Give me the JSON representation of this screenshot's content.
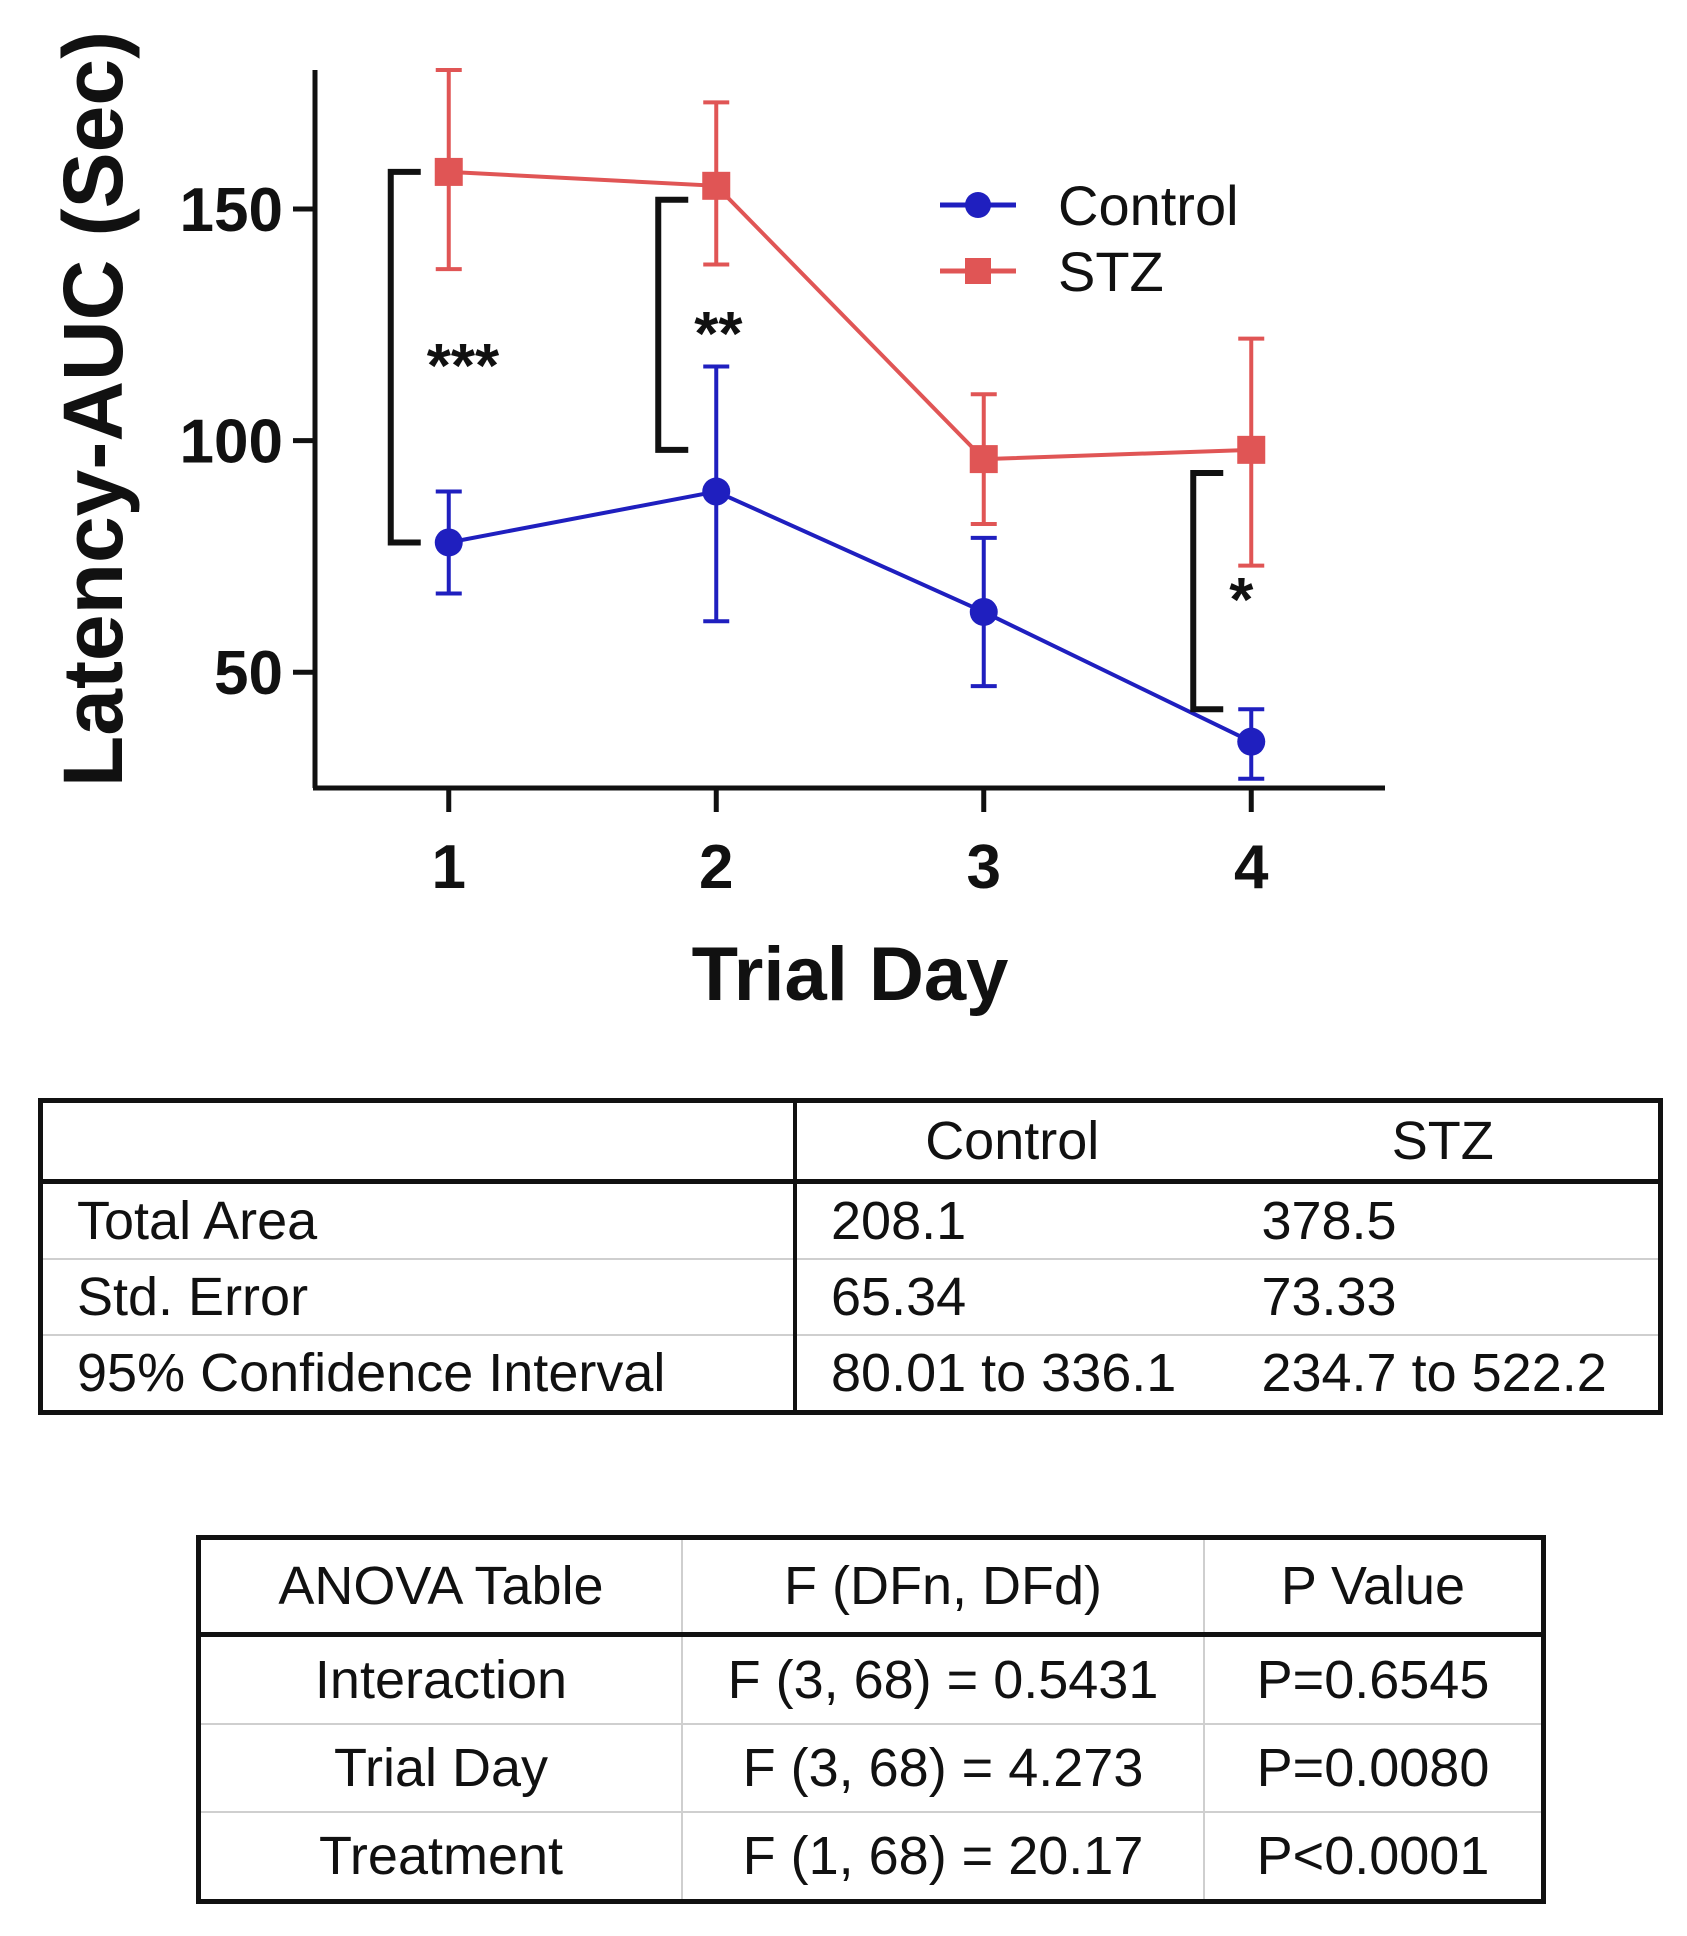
{
  "chart_data": {
    "type": "line",
    "ylabel": "Latency-AUC (Sec)",
    "xlabel": "Trial Day",
    "x": [
      1,
      2,
      3,
      4
    ],
    "xlim": [
      0.5,
      4.5
    ],
    "ylim": [
      25,
      180
    ],
    "yticks": [
      50,
      100,
      150
    ],
    "legend": "top-right",
    "series": [
      {
        "name": "Control",
        "color": "#1f1fbf",
        "marker": "circle",
        "values": [
          78,
          89,
          63,
          35
        ],
        "err_upper": [
          89,
          116,
          79,
          42
        ],
        "err_lower": [
          67,
          61,
          47,
          27
        ]
      },
      {
        "name": "STZ",
        "color": "#e05555",
        "marker": "square",
        "values": [
          158,
          155,
          96,
          98
        ],
        "err_upper": [
          180,
          173,
          110,
          122
        ],
        "err_lower": [
          137,
          138,
          82,
          73
        ]
      }
    ],
    "annotations": [
      {
        "text": "***",
        "x": 1,
        "y_top": 158,
        "y_bottom": 78
      },
      {
        "text": "**",
        "x": 2,
        "y_top": 152,
        "y_bottom": 98
      },
      {
        "text": "*",
        "x": 4,
        "y_top": 93,
        "y_bottom": 42
      }
    ]
  },
  "auc_table": {
    "headers": [
      "",
      "Control",
      "STZ"
    ],
    "rows": [
      [
        "Total Area",
        "208.1",
        "378.5"
      ],
      [
        "Std. Error",
        "65.34",
        "73.33"
      ],
      [
        "95% Confidence Interval",
        "80.01 to 336.1",
        "234.7 to 522.2"
      ]
    ]
  },
  "anova_table": {
    "headers": [
      "ANOVA Table",
      "F (DFn, DFd)",
      "P Value"
    ],
    "rows": [
      [
        "Interaction",
        "F (3, 68) = 0.5431",
        "P=0.6545"
      ],
      [
        "Trial Day",
        "F (3, 68) = 4.273",
        "P=0.0080"
      ],
      [
        "Treatment",
        "F (1, 68) = 20.17",
        "P<0.0001"
      ]
    ]
  }
}
